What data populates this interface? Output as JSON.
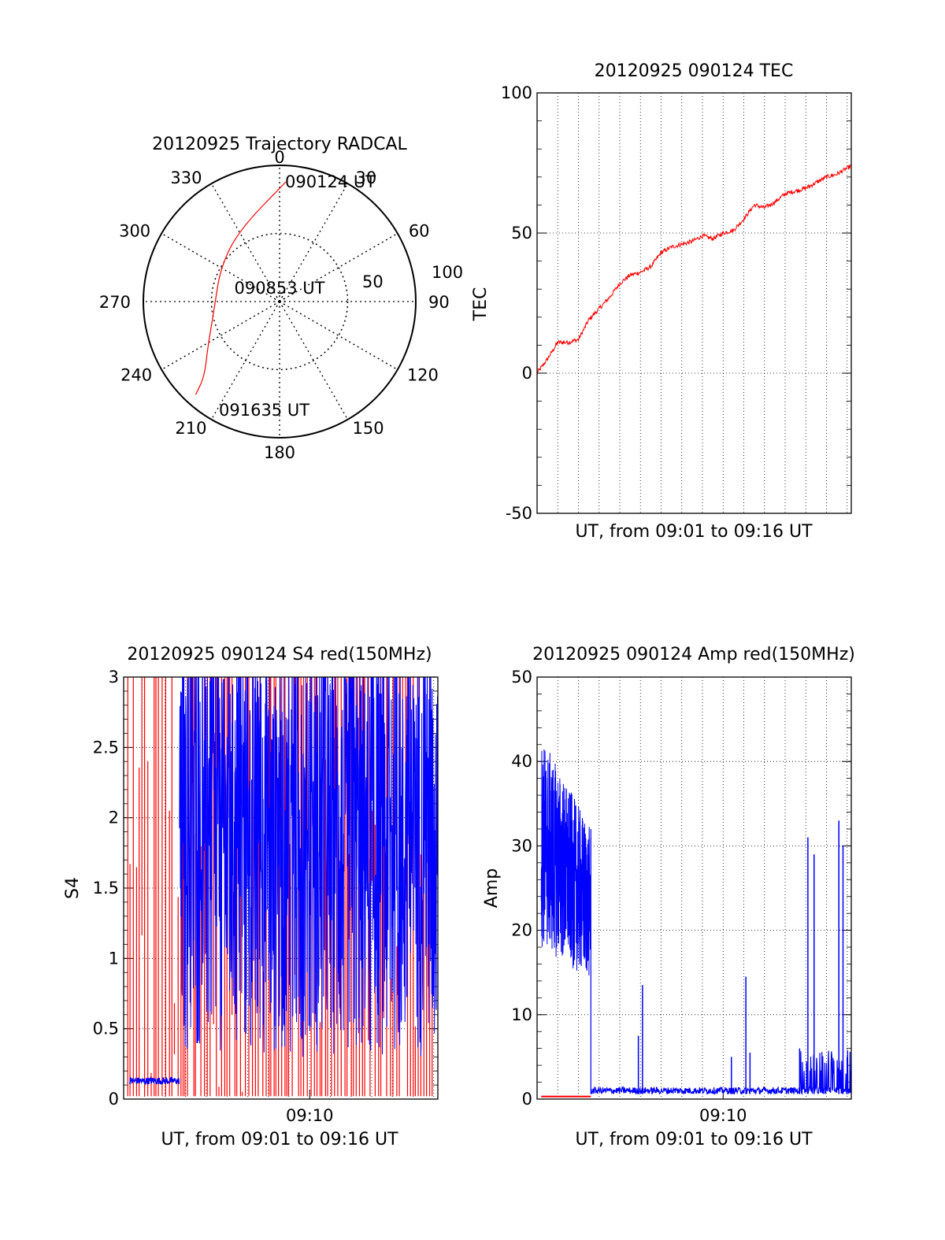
{
  "colors": {
    "red": "#ff0000",
    "blue": "#0000ff",
    "axis": "#000000",
    "grid": "#000000"
  },
  "chart_data": [
    {
      "id": "trajectory",
      "type": "polar",
      "title": "20120925 Trajectory RADCAL",
      "azimuth_labels": [
        "0",
        "30",
        "60",
        "90",
        "120",
        "150",
        "180",
        "210",
        "240",
        "270",
        "300",
        "330"
      ],
      "azimuth_values": [
        0,
        30,
        60,
        90,
        120,
        150,
        180,
        210,
        240,
        270,
        300,
        330
      ],
      "radial_labels": [
        "50",
        "100"
      ],
      "radial_values": [
        50,
        100
      ],
      "r_max": 100,
      "center_label": "090853 UT",
      "start_label": "090124 UT",
      "end_label": "091635 UT",
      "grid": true,
      "track_color": "#ff0000",
      "track": [
        {
          "az": 3,
          "r": 88
        },
        {
          "az": 330,
          "r": 60
        },
        {
          "az": 300,
          "r": 50
        },
        {
          "az": 265,
          "r": 48
        },
        {
          "az": 238,
          "r": 62
        },
        {
          "az": 225,
          "r": 78
        },
        {
          "az": 222,
          "r": 92
        }
      ]
    },
    {
      "id": "tec",
      "type": "line",
      "title": "20120925 090124 TEC",
      "xlabel": "UT, from 09:01 to 09:16 UT",
      "ylabel": "TEC",
      "xlim": [
        0,
        15.2
      ],
      "ylim": [
        -50,
        100
      ],
      "yticks": [
        -50,
        0,
        50,
        100
      ],
      "ytick_labels": [
        "-50",
        "0",
        "50",
        "100"
      ],
      "grid": true,
      "series": [
        {
          "color": "#ff0000",
          "x": [
            0,
            0.5,
            1.0,
            1.5,
            2.0,
            2.5,
            3.0,
            3.5,
            4.0,
            4.5,
            5.0,
            5.5,
            6.0,
            6.5,
            7.0,
            7.5,
            8.0,
            8.5,
            9.0,
            9.5,
            10.0,
            10.5,
            11.0,
            11.5,
            12.0,
            12.5,
            13.0,
            13.5,
            14.0,
            14.5,
            15.2
          ],
          "y": [
            0,
            5,
            11,
            11,
            12,
            19,
            23,
            27,
            32,
            35,
            36,
            38,
            43,
            45,
            46,
            47,
            49,
            48,
            50,
            51,
            55,
            60,
            59,
            61,
            64,
            65,
            66,
            68,
            70,
            71,
            74
          ]
        }
      ]
    },
    {
      "id": "s4",
      "type": "line",
      "title": "20120925 090124 S4 red(150MHz)",
      "xlabel": "UT, from 09:01 to 09:16 UT",
      "ylabel": "S4",
      "xlim": [
        0,
        15.2
      ],
      "ylim": [
        0,
        3
      ],
      "yticks": [
        0,
        0.5,
        1,
        1.5,
        2,
        2.5,
        3
      ],
      "ytick_labels": [
        "0",
        "0.5",
        "1",
        "1.5",
        "2",
        "2.5",
        "3"
      ],
      "xticks": [
        9
      ],
      "xtick_labels": [
        "09:10"
      ],
      "grid": true,
      "series": [
        {
          "color": "#ff0000",
          "style": "dense-spikes",
          "x_range": [
            0.2,
            15.0
          ],
          "low": 0.02,
          "high": 3.0
        },
        {
          "color": "#0000ff",
          "style": "dense-noise",
          "x": [
            0.3,
            2.7
          ],
          "y": [
            0.13,
            0.13
          ]
        },
        {
          "color": "#0000ff",
          "style": "dense-noise",
          "x_range": [
            2.7,
            15.2
          ],
          "low": 0.3,
          "high": 3.0
        }
      ]
    },
    {
      "id": "amp",
      "type": "line",
      "title": "20120925 090124 Amp red(150MHz)",
      "xlabel": "UT, from 09:01 to 09:16 UT",
      "ylabel": "Amp",
      "xlim": [
        0,
        15.2
      ],
      "ylim": [
        0,
        50
      ],
      "yticks": [
        0,
        10,
        20,
        30,
        40,
        50
      ],
      "ytick_labels": [
        "0",
        "10",
        "20",
        "30",
        "40",
        "50"
      ],
      "xticks": [
        9
      ],
      "xtick_labels": [
        "09:10"
      ],
      "grid": true,
      "series": [
        {
          "color": "#ff0000",
          "x": [
            0.2,
            2.6
          ],
          "y": [
            0.3,
            0.3
          ]
        },
        {
          "color": "#0000ff",
          "style": "noise-band",
          "x": [
            0.2,
            2.6
          ],
          "y_low": [
            18,
            14
          ],
          "y_high": [
            43,
            32
          ]
        },
        {
          "color": "#0000ff",
          "style": "baseline-spikes",
          "x": [
            2.6,
            15.2
          ],
          "baseline": 0.6,
          "spikes": [
            {
              "x": 4.9,
              "y": 7.5
            },
            {
              "x": 5.1,
              "y": 13.5
            },
            {
              "x": 9.4,
              "y": 5
            },
            {
              "x": 10.1,
              "y": 14.5
            },
            {
              "x": 10.3,
              "y": 5.5
            },
            {
              "x": 12.7,
              "y": 6
            },
            {
              "x": 13.1,
              "y": 31
            },
            {
              "x": 13.4,
              "y": 29
            },
            {
              "x": 14.6,
              "y": 33
            },
            {
              "x": 14.8,
              "y": 30
            },
            {
              "x": 15.0,
              "y": 5
            }
          ]
        }
      ]
    }
  ]
}
